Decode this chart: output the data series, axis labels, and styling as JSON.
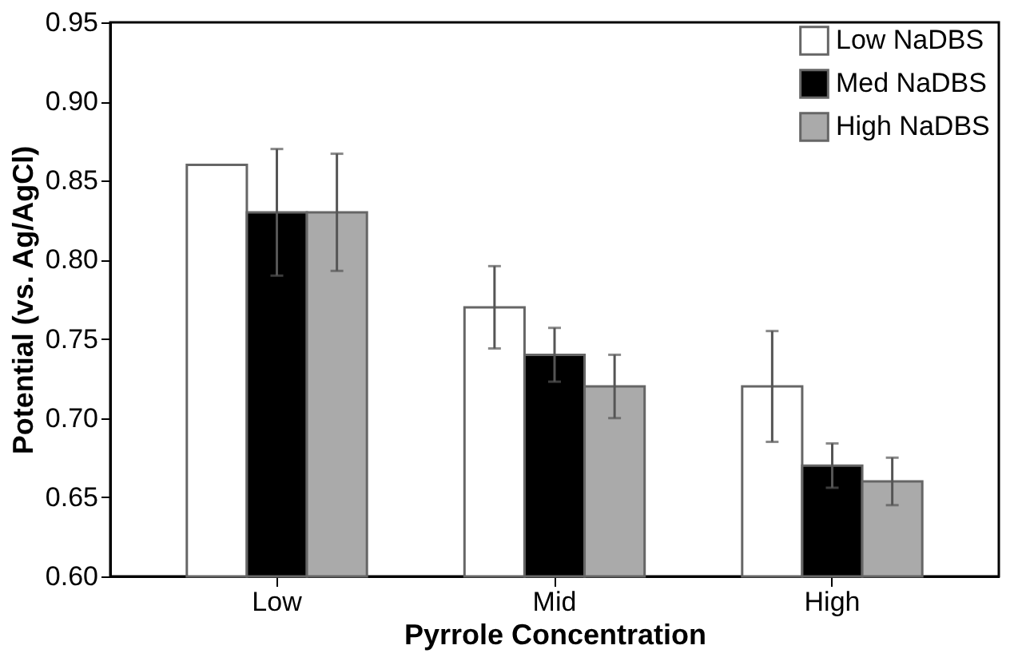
{
  "chart_data": {
    "type": "bar",
    "xlabel": "Pyrrole Concentration",
    "ylabel": "Potential (vs. Ag/AgCl)",
    "categories": [
      "Low",
      "Mid",
      "High"
    ],
    "series": [
      {
        "name": "Low  NaDBS",
        "color": "#ffffff",
        "values": [
          0.86,
          0.77,
          0.72
        ],
        "errors": [
          null,
          0.026,
          0.035
        ]
      },
      {
        "name": "Med  NaDBS",
        "color": "#000000",
        "values": [
          0.83,
          0.74,
          0.67
        ],
        "errors": [
          0.04,
          0.017,
          0.014
        ]
      },
      {
        "name": "High NaDBS",
        "color": "#aaaaaa",
        "values": [
          0.83,
          0.72,
          0.66
        ],
        "errors": [
          0.037,
          0.02,
          0.015
        ]
      }
    ],
    "ylim": [
      0.6,
      0.95
    ],
    "yticks": [
      {
        "value": 0.6,
        "label": "0.60"
      },
      0.65,
      {
        "value": 0.7,
        "label": "0.70"
      },
      0.75,
      {
        "value": 0.8,
        "label": "0.80"
      },
      0.85,
      {
        "value": 0.9,
        "label": "0.90"
      },
      0.95
    ],
    "grid": false,
    "legend": "top right"
  }
}
